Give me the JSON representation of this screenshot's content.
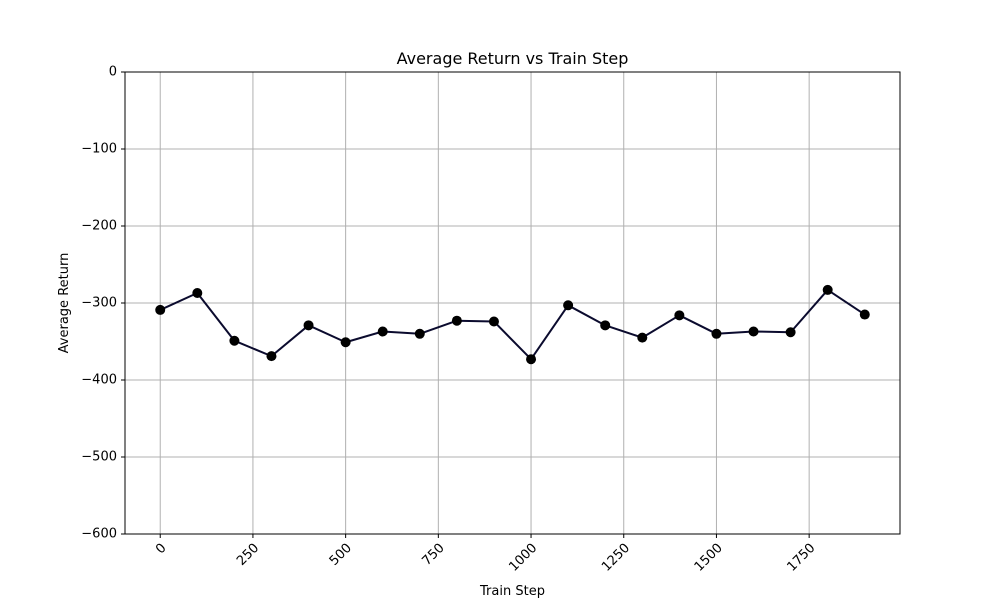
{
  "chart_data": {
    "type": "line",
    "title": "Average Return vs Train Step",
    "xlabel": "Train Step",
    "ylabel": "Average Return",
    "xlim": [
      -95,
      1995
    ],
    "ylim": [
      -600,
      0
    ],
    "xticks": [
      0,
      250,
      500,
      750,
      1000,
      1250,
      1500,
      1750
    ],
    "xtick_labels": [
      "0",
      "250",
      "500",
      "750",
      "1000",
      "1250",
      "1500",
      "1750"
    ],
    "xtick_rotation": 45,
    "yticks": [
      0,
      -100,
      -200,
      -300,
      -400,
      -500,
      -600
    ],
    "ytick_labels": [
      "0",
      "−100",
      "−200",
      "−300",
      "−400",
      "−500",
      "−600"
    ],
    "grid": true,
    "legend": "none",
    "series": [
      {
        "color": "#0b0b2e",
        "marker_color": "#000000",
        "x": [
          0,
          100,
          200,
          300,
          400,
          500,
          600,
          700,
          800,
          900,
          1000,
          1100,
          1200,
          1300,
          1400,
          1500,
          1600,
          1700,
          1800,
          1900
        ],
        "y": [
          -309,
          -287,
          -349,
          -369,
          -329,
          -351,
          -337,
          -340,
          -323,
          -324,
          -373,
          -303,
          -329,
          -345,
          -316,
          -340,
          -337,
          -338,
          -283,
          -315
        ]
      }
    ]
  }
}
